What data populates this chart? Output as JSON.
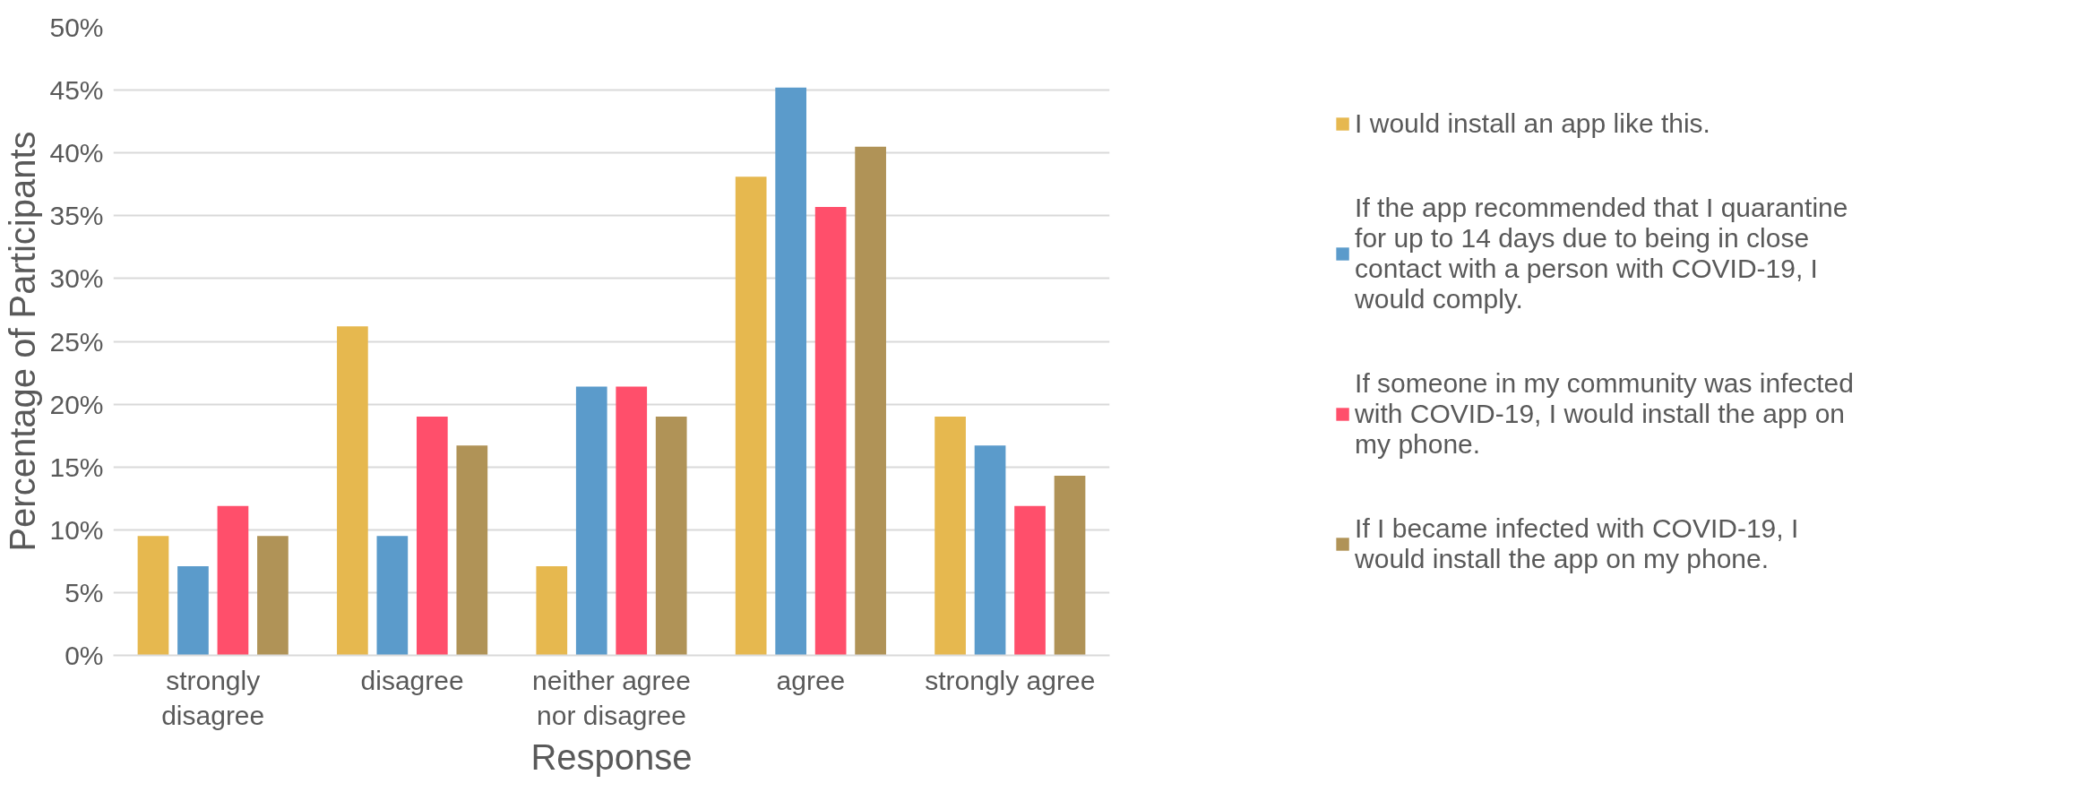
{
  "chart_data": {
    "type": "bar",
    "xlabel": "Response",
    "ylabel": "Percentage of Participants",
    "categories": [
      "strongly disagree",
      "disagree",
      "neither agree nor disagree",
      "agree",
      "strongly agree"
    ],
    "series": [
      {
        "name": "I would install an app like this.",
        "color": "#e6b84f",
        "values": [
          9.5,
          26.2,
          7.1,
          38.1,
          19.0
        ]
      },
      {
        "name": "If the app recommended that I quarantine for up to 14 days due to being in close contact with a person with COVID-19, I would comply.",
        "color": "#5b9bcb",
        "values": [
          7.1,
          9.5,
          21.4,
          45.2,
          16.7
        ]
      },
      {
        "name": "If someone in my community was infected with COVID-19, I would install the app on my phone.",
        "color": "#ff4f6b",
        "values": [
          11.9,
          19.0,
          21.4,
          35.7,
          11.9
        ]
      },
      {
        "name": "If I became infected with COVID-19, I would install the app on my phone.",
        "color": "#b09357",
        "values": [
          9.5,
          16.7,
          19.0,
          40.5,
          14.3
        ]
      }
    ],
    "ylim": [
      0,
      50
    ],
    "yticks": [
      {
        "value": 0,
        "label": "0%"
      },
      {
        "value": 5,
        "label": "5%"
      },
      {
        "value": 10,
        "label": "10%"
      },
      {
        "value": 15,
        "label": "15%"
      },
      {
        "value": 20,
        "label": "20%"
      },
      {
        "value": 25,
        "label": "25%"
      },
      {
        "value": 30,
        "label": "30%"
      },
      {
        "value": 35,
        "label": "35%"
      },
      {
        "value": 40,
        "label": "40%"
      },
      {
        "value": 45,
        "label": "45%"
      },
      {
        "value": 50,
        "label": "50%"
      }
    ],
    "grid": "y",
    "legend": "right"
  }
}
